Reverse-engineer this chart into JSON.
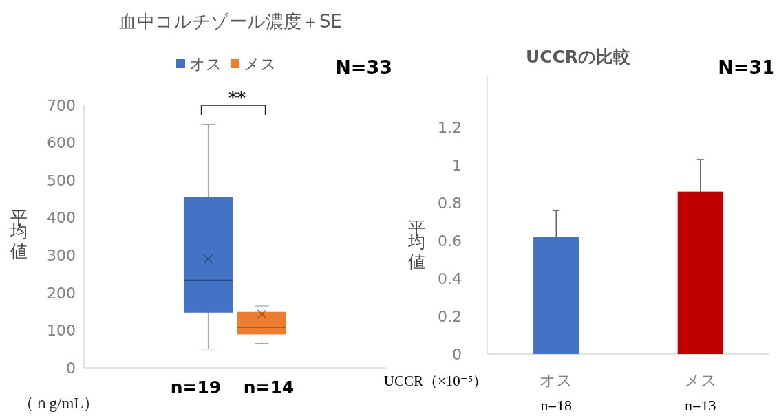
{
  "chart_data": [
    {
      "type": "box",
      "title": "血中コルチゾール濃度＋SE",
      "ylabel": "平均値",
      "categories": [
        null
      ],
      "series": [
        {
          "name": "オス",
          "color": "#4472c4",
          "boxes": [
            {
              "low": 50,
              "q1": 147,
              "median": 234,
              "q3": 455,
              "high": 648,
              "mean": 290
            }
          ]
        },
        {
          "name": "メス",
          "color": "#ed7d31",
          "boxes": [
            {
              "low": 65,
              "q1": 89,
              "median": 108,
              "q3": 149,
              "high": 165,
              "mean": 143
            }
          ]
        }
      ],
      "ylim": [
        0,
        700
      ],
      "yticks": [
        0,
        100,
        200,
        300,
        400,
        500,
        600,
        700
      ],
      "legend": "top",
      "annotations": [
        "**",
        "N=33",
        "n=19",
        "n=14",
        "（ｎg/mL）"
      ]
    },
    {
      "type": "bar",
      "title": "UCCRの比較",
      "ylabel": "平均値",
      "xlabel": "UCCR（×10⁻⁵）",
      "categories": [
        "オス",
        "メス"
      ],
      "values": [
        0.62,
        0.86
      ],
      "colors": [
        "#4472c4",
        "#c00000"
      ],
      "errors": [
        [
          0.62,
          0.76
        ],
        [
          0.86,
          1.03
        ]
      ],
      "ylim": [
        0,
        1.47
      ],
      "yticks": [
        0,
        0.2,
        0.4,
        0.6,
        0.8,
        1,
        1.2
      ],
      "annotations": [
        "N=31",
        "n=18",
        "n=13"
      ]
    }
  ]
}
